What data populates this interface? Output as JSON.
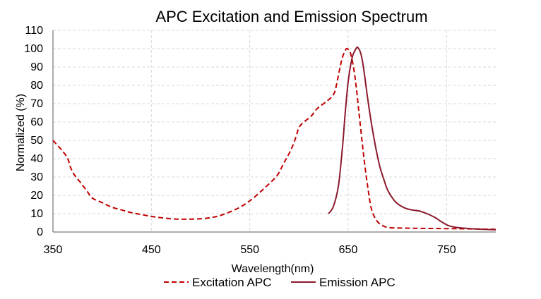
{
  "chart_data": {
    "type": "line",
    "title": "APC Excitation and Emission Spectrum",
    "xlabel": "Wavelength(nm)",
    "ylabel": "Normalized (%)",
    "xlim": [
      350,
      800
    ],
    "ylim": [
      0,
      110
    ],
    "xticks": [
      350,
      450,
      550,
      650,
      750
    ],
    "yticks": [
      0,
      10,
      20,
      30,
      40,
      50,
      60,
      70,
      80,
      90,
      100,
      110
    ],
    "grid": true,
    "legend_position": "bottom",
    "series": [
      {
        "name": "Excitation APC",
        "color": "#c00000",
        "style": "dashed",
        "points": [
          [
            350,
            50
          ],
          [
            355,
            47
          ],
          [
            360,
            44
          ],
          [
            365,
            40
          ],
          [
            368,
            35
          ],
          [
            372,
            31
          ],
          [
            378,
            27
          ],
          [
            385,
            22
          ],
          [
            390,
            18.5
          ],
          [
            400,
            16
          ],
          [
            410,
            13.5
          ],
          [
            420,
            12
          ],
          [
            430,
            10.5
          ],
          [
            440,
            9.5
          ],
          [
            450,
            8.5
          ],
          [
            460,
            7.8
          ],
          [
            470,
            7.2
          ],
          [
            480,
            7
          ],
          [
            490,
            7
          ],
          [
            500,
            7.2
          ],
          [
            510,
            7.8
          ],
          [
            520,
            9
          ],
          [
            530,
            11
          ],
          [
            540,
            13.5
          ],
          [
            550,
            17
          ],
          [
            560,
            21.5
          ],
          [
            570,
            26.5
          ],
          [
            578,
            31
          ],
          [
            585,
            38
          ],
          [
            592,
            45
          ],
          [
            597,
            52
          ],
          [
            600,
            57
          ],
          [
            605,
            60
          ],
          [
            612,
            63
          ],
          [
            618,
            67
          ],
          [
            625,
            70
          ],
          [
            632,
            73
          ],
          [
            636,
            76
          ],
          [
            638,
            80
          ],
          [
            641,
            88
          ],
          [
            644,
            95
          ],
          [
            647,
            99
          ],
          [
            649,
            100
          ],
          [
            652,
            98
          ],
          [
            655,
            91
          ],
          [
            658,
            80
          ],
          [
            661,
            65
          ],
          [
            664,
            50
          ],
          [
            667,
            36
          ],
          [
            670,
            24
          ],
          [
            673,
            14
          ],
          [
            676,
            9
          ],
          [
            680,
            5.5
          ],
          [
            685,
            3.5
          ],
          [
            690,
            2.5
          ],
          [
            700,
            2.2
          ],
          [
            720,
            2
          ],
          [
            760,
            1.8
          ],
          [
            800,
            1.5
          ]
        ]
      },
      {
        "name": "Emission APC",
        "color": "#8b1a2b",
        "style": "solid",
        "points": [
          [
            630,
            10
          ],
          [
            635,
            14
          ],
          [
            640,
            25
          ],
          [
            644,
            45
          ],
          [
            647,
            65
          ],
          [
            650,
            82
          ],
          [
            654,
            95
          ],
          [
            658,
            100
          ],
          [
            660,
            100.5
          ],
          [
            663,
            97
          ],
          [
            666,
            88
          ],
          [
            670,
            72
          ],
          [
            674,
            58
          ],
          [
            678,
            46
          ],
          [
            682,
            36
          ],
          [
            686,
            29
          ],
          [
            690,
            23
          ],
          [
            695,
            18.5
          ],
          [
            700,
            15.5
          ],
          [
            708,
            13
          ],
          [
            715,
            12
          ],
          [
            722,
            11.5
          ],
          [
            730,
            10
          ],
          [
            738,
            8
          ],
          [
            745,
            5.5
          ],
          [
            752,
            3.5
          ],
          [
            760,
            2.5
          ],
          [
            770,
            2
          ],
          [
            785,
            1.5
          ],
          [
            800,
            1.2
          ]
        ]
      }
    ]
  }
}
